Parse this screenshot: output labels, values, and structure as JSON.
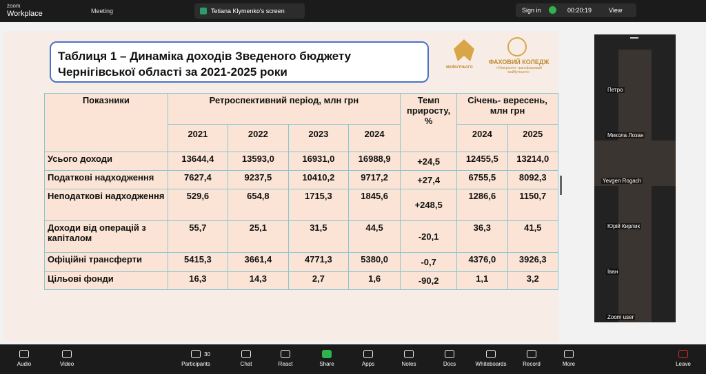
{
  "top_bar": {
    "app_name": [
      "zoom",
      "Workplace"
    ],
    "meeting": "Meeting",
    "tab": "Tetiana Klymenko's screen",
    "sign_in": "Sign in",
    "timer": "00:20:19",
    "view": "View"
  },
  "slide": {
    "title": [
      "Таблиця 1 – Динаміка доходів Зведеного бюджету",
      "Чернігівської області за 2021-2025 роки"
    ],
    "logo_left": "МАЙБУТНЬОГО",
    "logo_right": [
      "ФАХОВИЙ КОЛЕДЖ",
      "«Університет трансформацій",
      "майбутнього»"
    ],
    "table": {
      "header": {
        "indicator": "Показники",
        "retro": "Ретроспективний період, млн грн",
        "growth": "Темп приросту, %",
        "jan_sep": "Січень- вересень, млн грн",
        "retro_years": [
          "2021",
          "2022",
          "2023",
          "2024"
        ],
        "jan_sep_years": [
          "2024",
          "2025"
        ]
      },
      "rows": [
        [
          "Усього доходи",
          "13644,4",
          "13593,0",
          "16931,0",
          "16988,9",
          "+24,5",
          "12455,5",
          "13214,0"
        ],
        [
          "Податкові надходження",
          "7627,4",
          "9237,5",
          "10410,2",
          "9717,2",
          "+27,4",
          "6755,5",
          "8092,3"
        ],
        [
          "Неподаткові надходження",
          "529,6",
          "654,8",
          "1715,3",
          "1845,6",
          "+248,5",
          "1286,6",
          "1150,7"
        ],
        [
          "Доходи від операцій з капіталом",
          "55,7",
          "25,1",
          "31,5",
          "44,5",
          "-20,1",
          "36,3",
          "41,5"
        ],
        [
          "Офіційні трансферти",
          "5415,3",
          "3661,4",
          "4771,3",
          "5380,0",
          "-0,7",
          "4376,0",
          "3926,3"
        ],
        [
          "Цільові фонди",
          "16,3",
          "14,3",
          "2,7",
          "1,6",
          "-90,2",
          "1,1",
          "3,2"
        ]
      ]
    }
  },
  "participants": [
    "Петро",
    "Микола Лозан",
    "Yevgen Rogach",
    "Юрій Кирлик",
    "Іван",
    "Zoom user"
  ],
  "toolbar": {
    "audio": "Audio",
    "video": "Video",
    "participants": "Participants",
    "participants_count": "30",
    "chat": "Chat",
    "react": "React",
    "share": "Share",
    "apps": "Apps",
    "notes": "Notes",
    "docs": "Docs",
    "whiteboards": "Whiteboards",
    "record": "Record",
    "more": "More",
    "leave": "Leave"
  }
}
